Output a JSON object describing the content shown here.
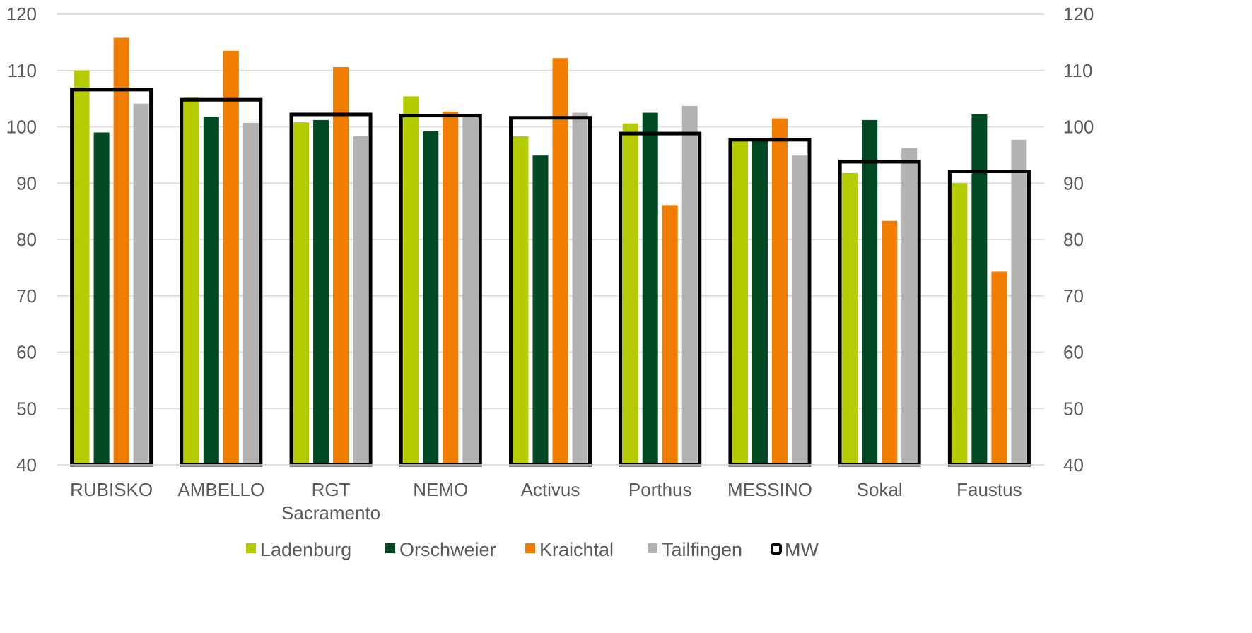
{
  "chart_data": {
    "type": "bar",
    "categories": [
      [
        "RUBISKO"
      ],
      [
        "AMBELLO"
      ],
      [
        "RGT",
        "Sacramento"
      ],
      [
        "NEMO"
      ],
      [
        "Activus"
      ],
      [
        "Porthus"
      ],
      [
        "MESSINO"
      ],
      [
        "Sokal"
      ],
      [
        "Faustus"
      ]
    ],
    "series": [
      {
        "name": "Ladenburg",
        "color": "#b5cc00",
        "values": [
          110.0,
          105.2,
          100.8,
          105.4,
          98.3,
          100.6,
          97.7,
          91.8,
          90.0
        ]
      },
      {
        "name": "Orschweier",
        "color": "#004a23",
        "values": [
          99.0,
          101.7,
          101.2,
          99.2,
          94.9,
          102.5,
          97.7,
          101.2,
          102.2
        ]
      },
      {
        "name": "Kraichtal",
        "color": "#f07d00",
        "values": [
          115.8,
          113.5,
          110.6,
          102.7,
          112.2,
          86.1,
          101.5,
          83.3,
          74.3
        ]
      },
      {
        "name": "Tailfingen",
        "color": "#b2b2b2",
        "values": [
          104.1,
          100.7,
          98.3,
          102.0,
          102.5,
          103.7,
          94.9,
          96.2,
          97.7
        ]
      }
    ],
    "mw": {
      "name": "MW",
      "values": [
        106.6,
        104.8,
        102.2,
        102.0,
        101.6,
        98.8,
        97.7,
        93.8,
        92.1
      ]
    },
    "ylim": [
      40,
      120
    ],
    "yticks": [
      40,
      50,
      60,
      70,
      80,
      90,
      100,
      110,
      120
    ],
    "ytick_labels": [
      "40",
      "50",
      "60",
      "70",
      "80",
      "90",
      "100",
      "110",
      "120"
    ],
    "y2ticks": [
      40,
      50,
      60,
      70,
      80,
      90,
      100,
      110,
      120
    ],
    "y2tick_labels": [
      "40",
      "50",
      "60",
      "70",
      "80",
      "90",
      "100",
      "110",
      "120"
    ],
    "grid": true,
    "legend_position": "bottom",
    "title": "",
    "xlabel": "",
    "ylabel": ""
  }
}
